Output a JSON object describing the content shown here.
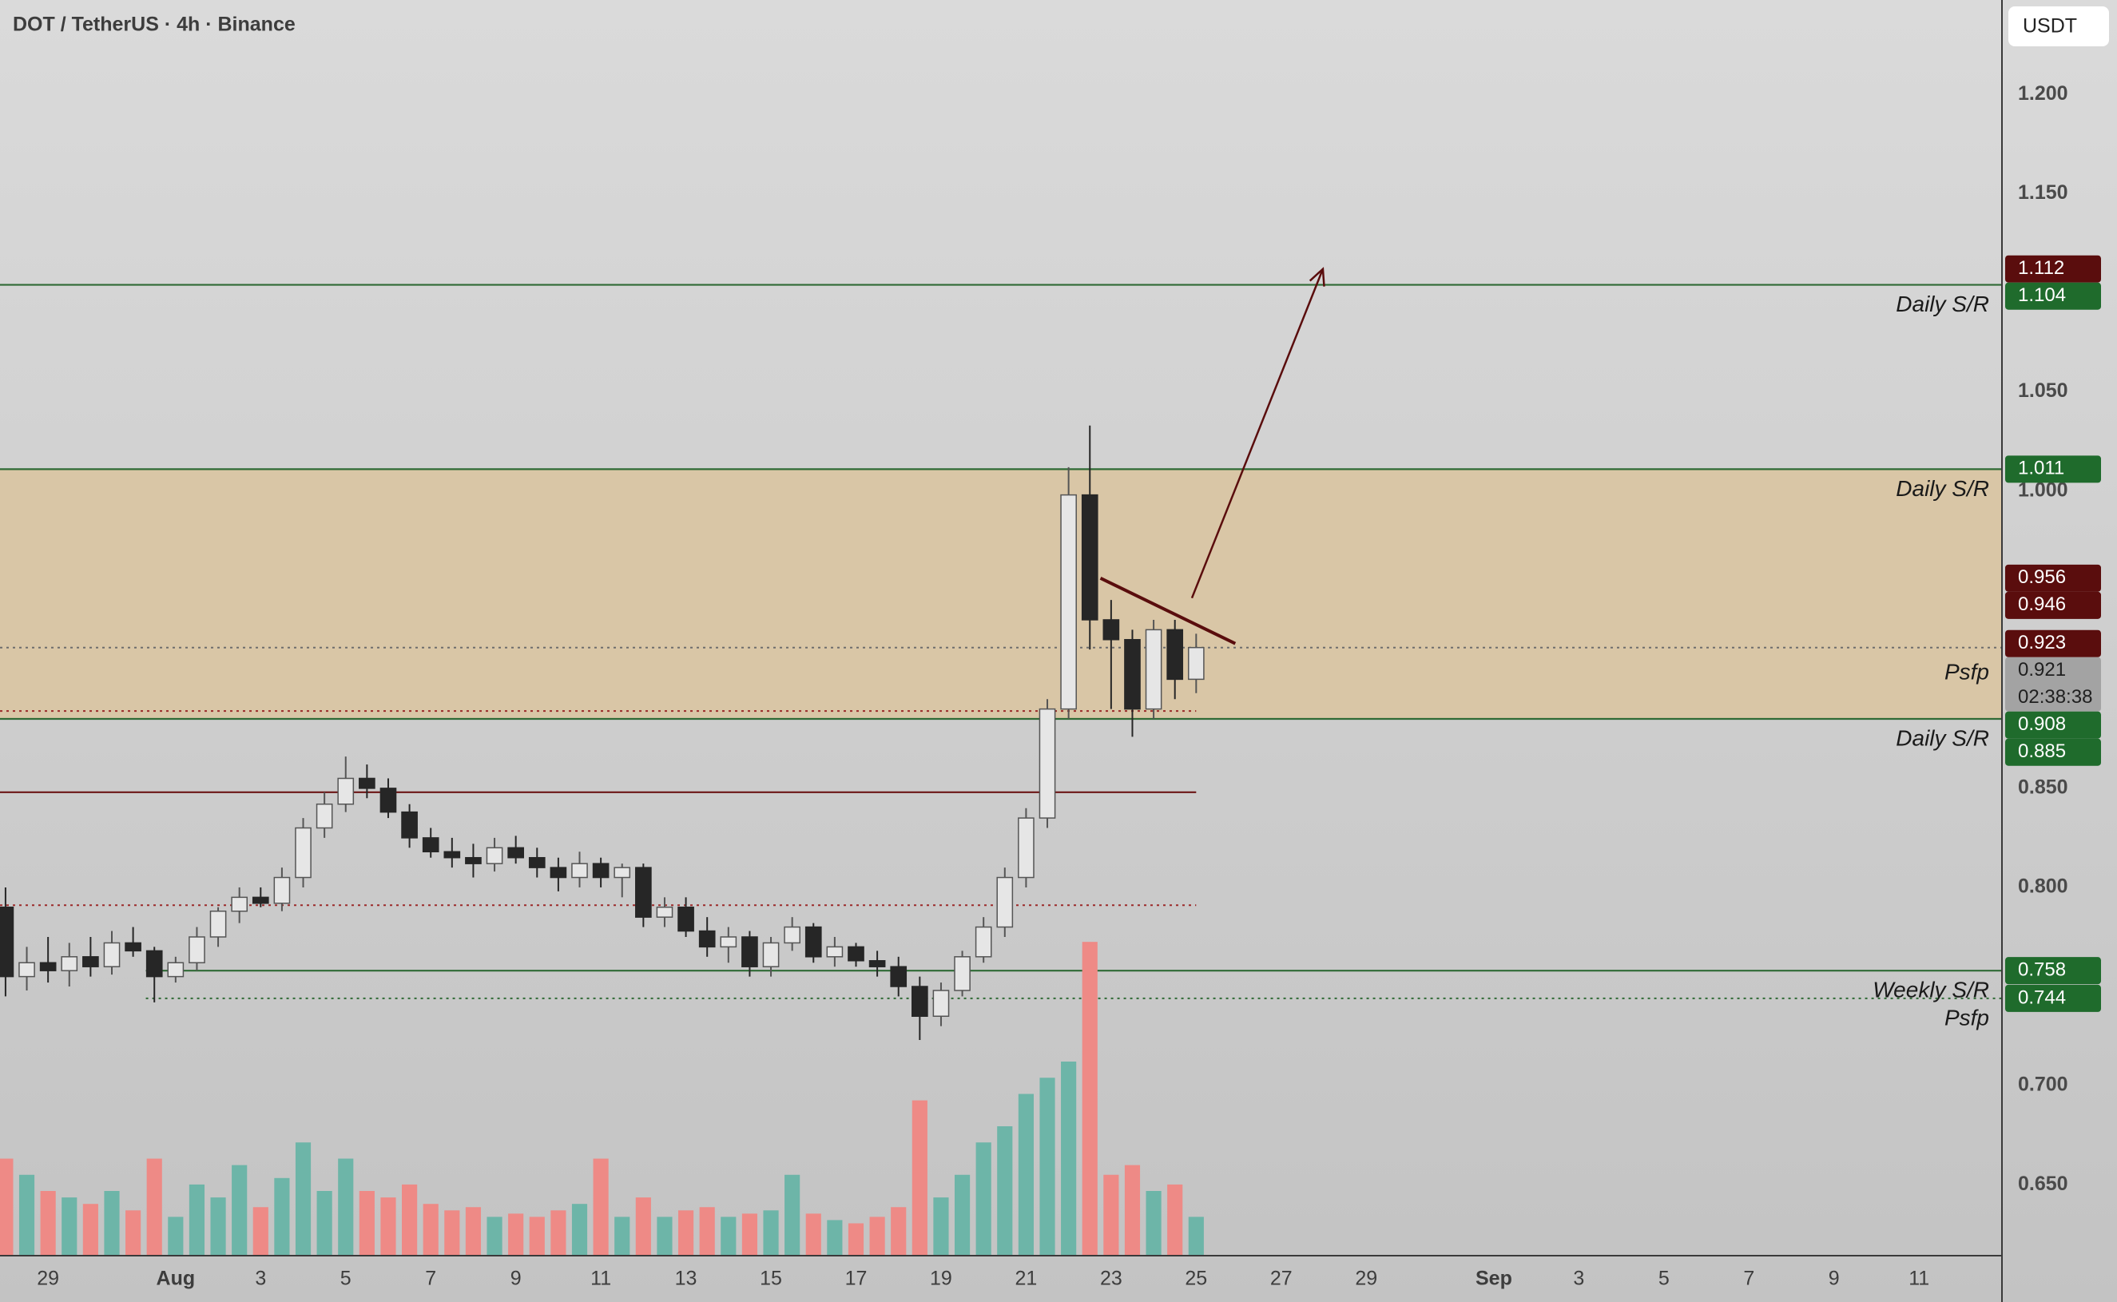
{
  "chart_data": {
    "type": "candlestick",
    "title": "DOT / TetherUS · 4h · Binance",
    "currency": "USDT",
    "x": [
      -3.0,
      -2.5,
      -2.0,
      -1.5,
      -1.0,
      -0.5,
      0.0,
      0.5,
      1.0,
      1.5,
      2.0,
      2.5,
      3.0,
      3.5,
      4.0,
      4.5,
      5.0,
      5.5,
      6.0,
      6.5,
      7.0,
      7.5,
      8.0,
      8.5,
      9.0,
      9.5,
      10.0,
      10.5,
      11.0,
      11.5,
      12.0,
      12.5,
      13.0,
      13.5,
      14.0,
      14.5,
      15.0,
      15.5,
      16.0,
      16.5,
      17.0,
      17.5,
      18.0,
      18.5,
      19.0,
      19.5,
      20.0,
      20.5,
      21.0,
      21.5,
      22.0,
      22.5,
      23.0,
      23.5,
      24.0,
      24.5,
      25.0
    ],
    "open": [
      0.79,
      0.755,
      0.762,
      0.758,
      0.765,
      0.76,
      0.772,
      0.768,
      0.755,
      0.762,
      0.775,
      0.788,
      0.795,
      0.792,
      0.805,
      0.83,
      0.842,
      0.855,
      0.85,
      0.838,
      0.825,
      0.818,
      0.815,
      0.812,
      0.82,
      0.815,
      0.81,
      0.805,
      0.812,
      0.805,
      0.81,
      0.785,
      0.79,
      0.778,
      0.77,
      0.775,
      0.76,
      0.772,
      0.78,
      0.765,
      0.77,
      0.763,
      0.76,
      0.75,
      0.735,
      0.748,
      0.765,
      0.78,
      0.805,
      0.835,
      0.89,
      0.998,
      0.935,
      0.925,
      0.89,
      0.93,
      0.905
    ],
    "high": [
      0.8,
      0.77,
      0.775,
      0.772,
      0.775,
      0.778,
      0.78,
      0.77,
      0.765,
      0.78,
      0.79,
      0.8,
      0.8,
      0.81,
      0.835,
      0.848,
      0.866,
      0.862,
      0.855,
      0.842,
      0.83,
      0.825,
      0.822,
      0.825,
      0.826,
      0.82,
      0.815,
      0.818,
      0.815,
      0.812,
      0.812,
      0.795,
      0.795,
      0.785,
      0.78,
      0.778,
      0.775,
      0.785,
      0.782,
      0.775,
      0.772,
      0.768,
      0.765,
      0.755,
      0.752,
      0.768,
      0.785,
      0.81,
      0.84,
      0.895,
      1.012,
      1.033,
      0.945,
      0.93,
      0.935,
      0.935,
      0.928
    ],
    "low": [
      0.745,
      0.748,
      0.752,
      0.75,
      0.755,
      0.756,
      0.765,
      0.742,
      0.752,
      0.758,
      0.77,
      0.782,
      0.79,
      0.788,
      0.8,
      0.825,
      0.838,
      0.845,
      0.835,
      0.82,
      0.815,
      0.81,
      0.805,
      0.808,
      0.812,
      0.805,
      0.798,
      0.8,
      0.8,
      0.795,
      0.78,
      0.78,
      0.775,
      0.765,
      0.762,
      0.755,
      0.755,
      0.768,
      0.762,
      0.76,
      0.76,
      0.755,
      0.745,
      0.723,
      0.73,
      0.745,
      0.762,
      0.775,
      0.8,
      0.83,
      0.885,
      0.92,
      0.89,
      0.876,
      0.885,
      0.895,
      0.898
    ],
    "close": [
      0.755,
      0.762,
      0.758,
      0.765,
      0.76,
      0.772,
      0.768,
      0.755,
      0.762,
      0.775,
      0.788,
      0.795,
      0.792,
      0.805,
      0.83,
      0.842,
      0.855,
      0.85,
      0.838,
      0.825,
      0.818,
      0.815,
      0.812,
      0.82,
      0.815,
      0.81,
      0.805,
      0.812,
      0.805,
      0.81,
      0.785,
      0.79,
      0.778,
      0.77,
      0.775,
      0.76,
      0.772,
      0.78,
      0.765,
      0.77,
      0.763,
      0.76,
      0.75,
      0.735,
      0.748,
      0.765,
      0.78,
      0.805,
      0.835,
      0.89,
      0.998,
      0.935,
      0.925,
      0.89,
      0.93,
      0.905,
      0.921
    ],
    "volume": [
      30,
      25,
      20,
      18,
      16,
      20,
      14,
      30,
      12,
      22,
      18,
      28,
      15,
      24,
      35,
      20,
      30,
      20,
      18,
      22,
      16,
      14,
      15,
      12,
      13,
      12,
      14,
      16,
      30,
      12,
      18,
      12,
      14,
      15,
      12,
      13,
      14,
      25,
      13,
      11,
      10,
      12,
      15,
      48,
      18,
      25,
      35,
      40,
      50,
      55,
      60,
      97,
      25,
      28,
      20,
      22,
      12
    ],
    "up_color": "#e6e6e6",
    "down_color": "#262626",
    "volume_up_color": "#6db5a8",
    "volume_down_color": "#ee8a86",
    "xlim": [
      -3.13,
      43.95
    ],
    "xticks": [
      {
        "value": -2,
        "label": "29"
      },
      {
        "value": 1,
        "label": "Aug"
      },
      3,
      5,
      7,
      9,
      11,
      13,
      15,
      17,
      19,
      21,
      23,
      25,
      27,
      29,
      {
        "value": 32,
        "label": "Sep"
      },
      {
        "value": 34,
        "label": "3"
      },
      {
        "value": 36,
        "label": "5"
      },
      {
        "value": 38,
        "label": "7"
      },
      {
        "value": 40,
        "label": "9"
      },
      {
        "value": 42,
        "label": "11"
      }
    ],
    "ylim": [
      0.6142,
      1.2477
    ],
    "yticks": [
      {
        "value": 1.2,
        "label": "1.200"
      },
      {
        "value": 1.15,
        "label": "1.150"
      },
      {
        "value": 1.05,
        "label": "1.050"
      },
      {
        "value": 1.0,
        "label": "1.000"
      },
      {
        "value": 0.85,
        "label": "0.850"
      },
      {
        "value": 0.8,
        "label": "0.800"
      },
      {
        "value": 0.7,
        "label": "0.700"
      },
      {
        "value": 0.65,
        "label": "0.650"
      }
    ],
    "vlim": [
      0,
      100
    ],
    "zone": {
      "from": 0.885,
      "to": 1.011,
      "color": "#d9c6a6"
    },
    "levels": [
      {
        "value": 1.104,
        "color": "#2f6a35",
        "dash": false,
        "note": "Daily S/R"
      },
      {
        "value": 1.011,
        "color": "#2f6a35",
        "dash": false,
        "note": "Daily S/R"
      },
      {
        "value": 0.885,
        "color": "#2f6a35",
        "dash": false,
        "note": "Daily S/R"
      },
      {
        "value": 0.758,
        "color": "#2f6a35",
        "dash": false,
        "from": 0.3,
        "note": "Weekly S/R"
      },
      {
        "value": 0.744,
        "color": "#2f6a35",
        "dash": true,
        "from": 0.3,
        "note": "Psfp"
      },
      {
        "value": 0.848,
        "color": "#6b1515",
        "dash": false,
        "to": 25
      },
      {
        "value": 0.791,
        "color": "#9b2a2a",
        "dash": true,
        "to": 25
      },
      {
        "value": 0.889,
        "color": "#9b2a2a",
        "dash": true,
        "to": 25
      },
      {
        "value": 0.921,
        "color": "#6d6d6d",
        "dash": true
      }
    ],
    "price_labels": [
      {
        "value": 1.112,
        "color": "#5a0d0d"
      },
      {
        "value": 1.104,
        "color": "#1f6b2c"
      },
      {
        "value": 1.011,
        "color": "#1f6b2c"
      },
      {
        "value": 0.956,
        "color": "#5a0d0d"
      },
      {
        "value": 0.946,
        "color": "#5a0d0d"
      },
      {
        "value": 0.923,
        "color": "#5a0d0d"
      },
      {
        "value": 0.921,
        "color": "#a3a3a3",
        "sub": "02:38:38"
      },
      {
        "value": 0.908,
        "color": "#1f6b2c",
        "note": "Psfp"
      },
      {
        "value": 0.885,
        "color": "#1f6b2c"
      },
      {
        "value": 0.758,
        "color": "#1f6b2c"
      },
      {
        "value": 0.744,
        "color": "#1f6b2c"
      }
    ],
    "drawings": [
      {
        "x": [
          22.75,
          25.92
        ],
        "y": [
          0.956,
          0.923
        ],
        "color": "#5a0d0d",
        "arrow": false
      },
      {
        "x": [
          24.9,
          27.98
        ],
        "y": [
          0.946,
          1.112
        ],
        "color": "#5a0d0d",
        "arrow": true
      }
    ]
  }
}
